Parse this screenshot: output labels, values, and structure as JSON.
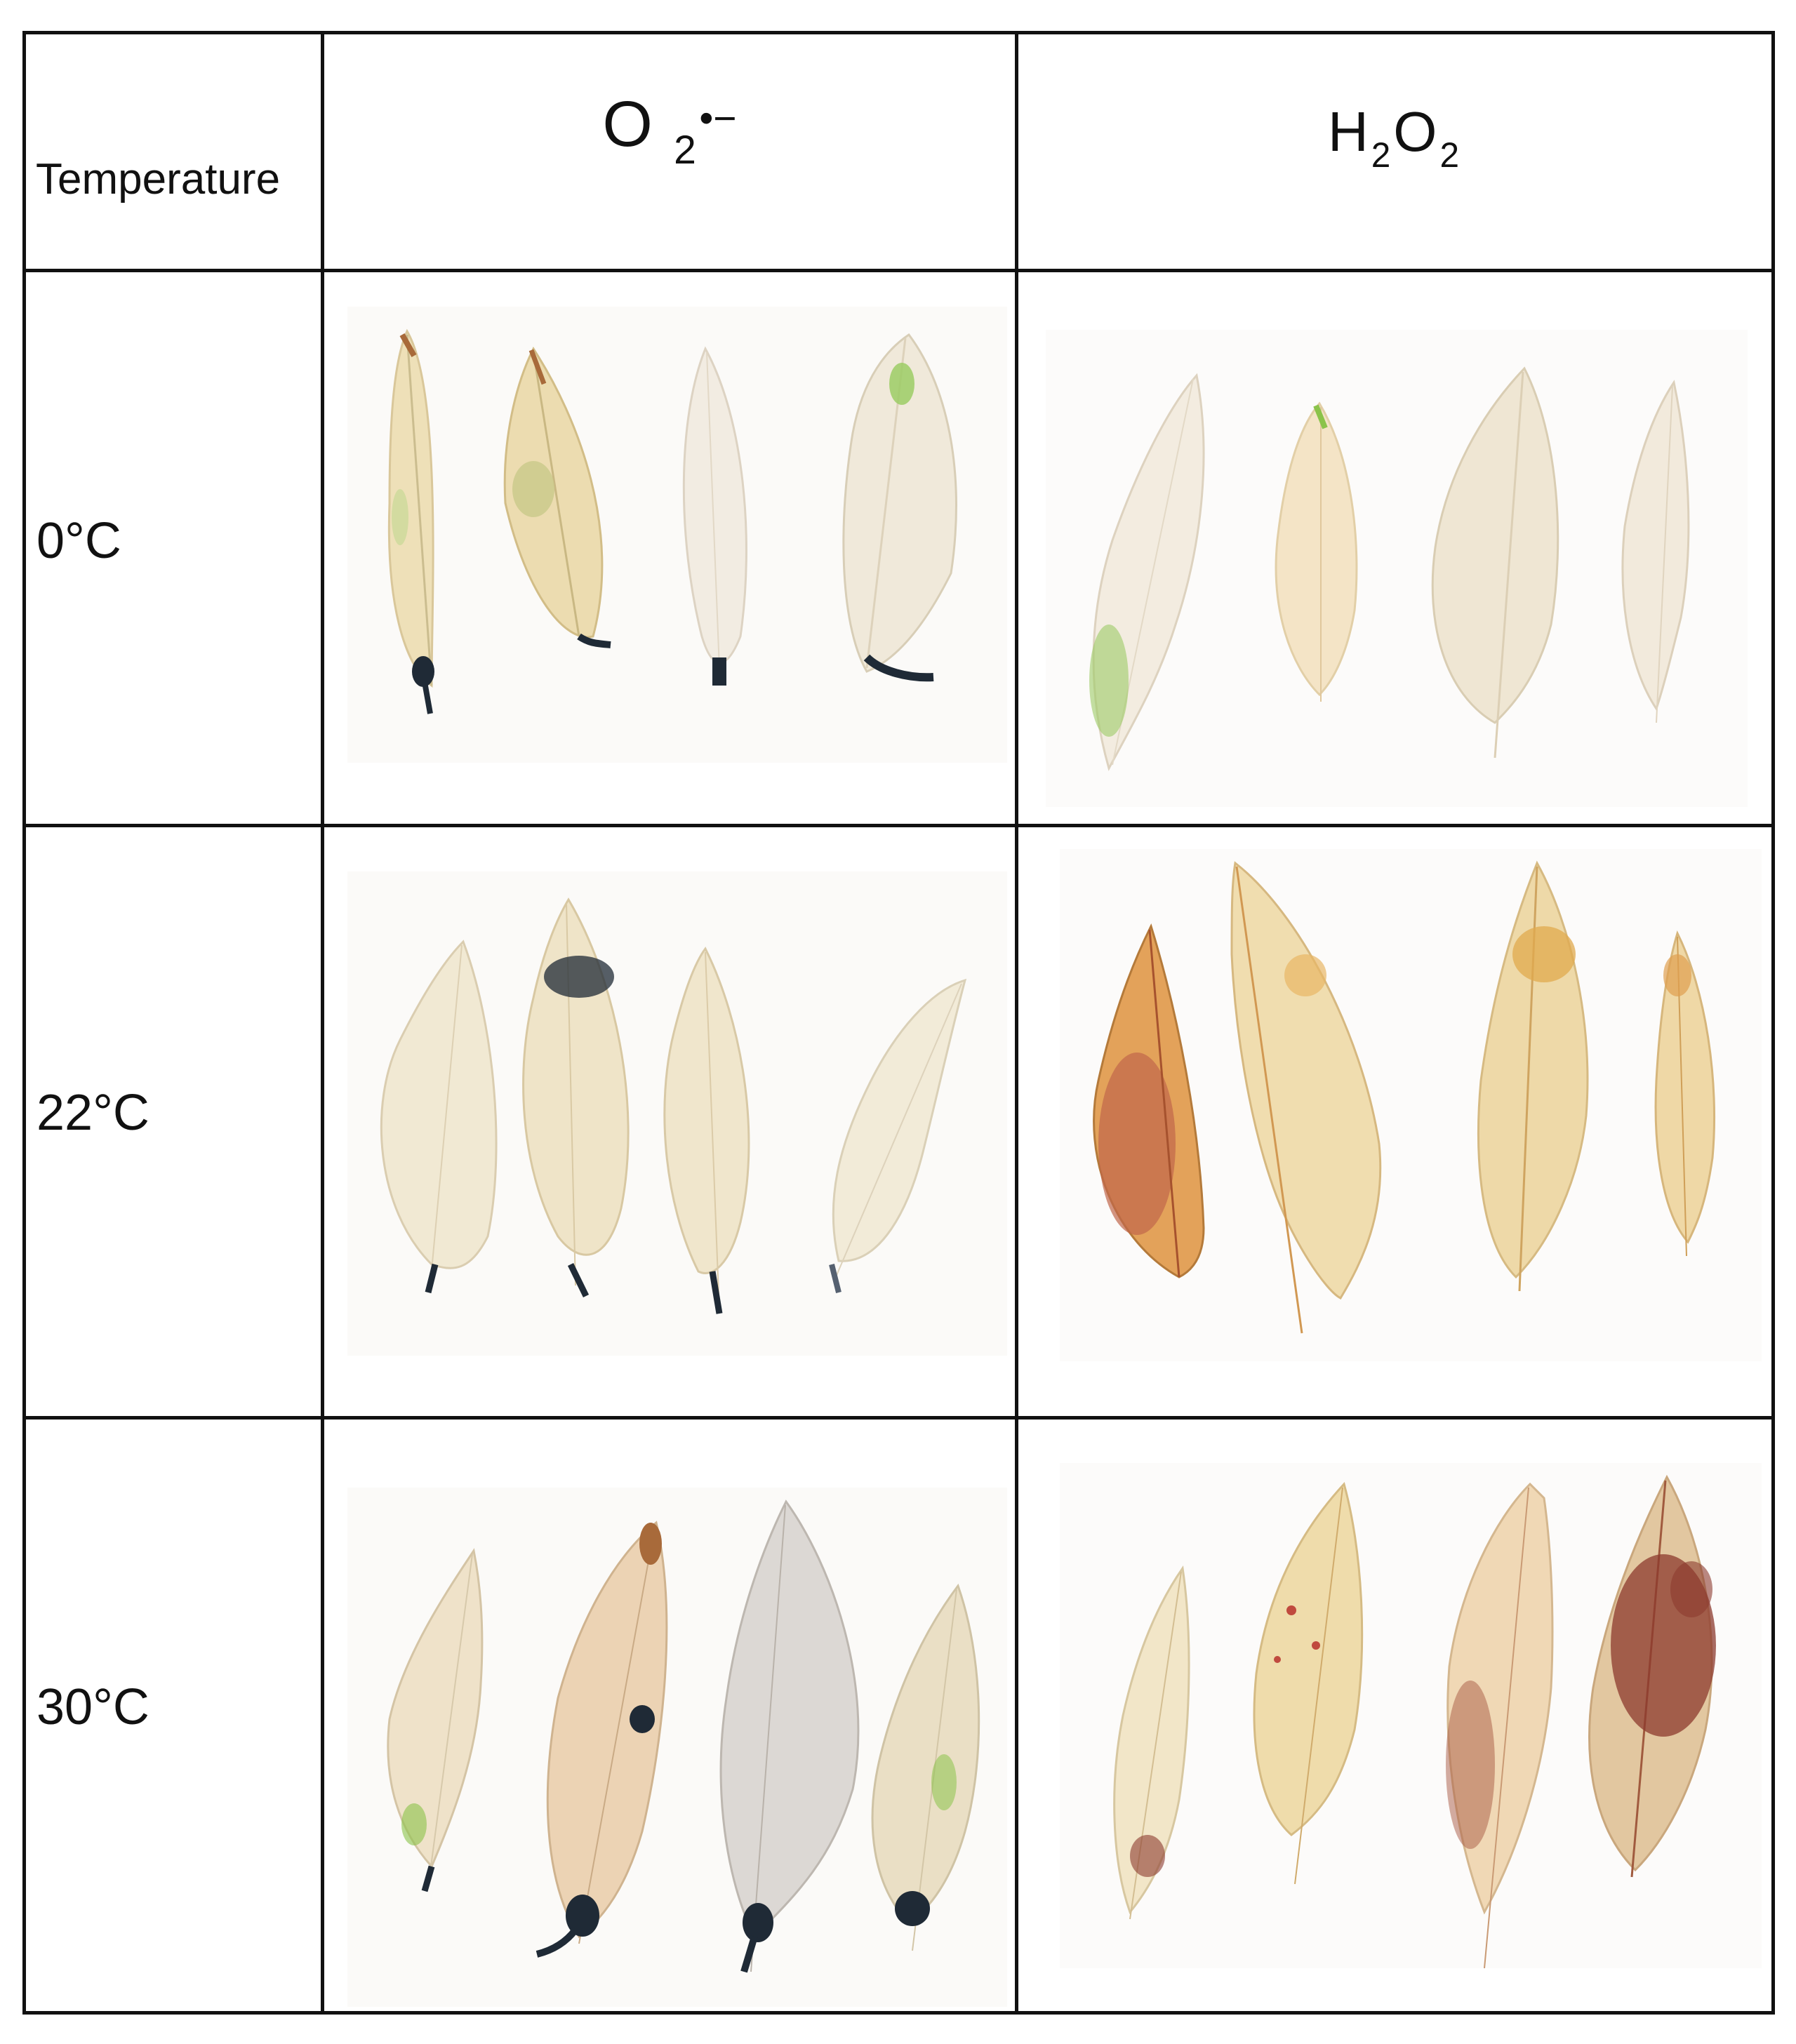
{
  "table": {
    "corner_label": "Temperature",
    "columns": [
      {
        "base": "O",
        "sub": "2",
        "sup": "•−"
      },
      {
        "part1": "H",
        "sub1": "2",
        "part2": "O",
        "sub2": "2"
      }
    ],
    "rows": [
      {
        "label": "0°C"
      },
      {
        "label": "22°C"
      },
      {
        "label": "30°C"
      }
    ]
  },
  "colors": {
    "grid_line": "#111111",
    "leaf_pale": "#efe6cf",
    "stain_blue_black": "#1f2a36",
    "stain_brown": "#8c3a2e",
    "stain_green": "#8bc34a"
  }
}
